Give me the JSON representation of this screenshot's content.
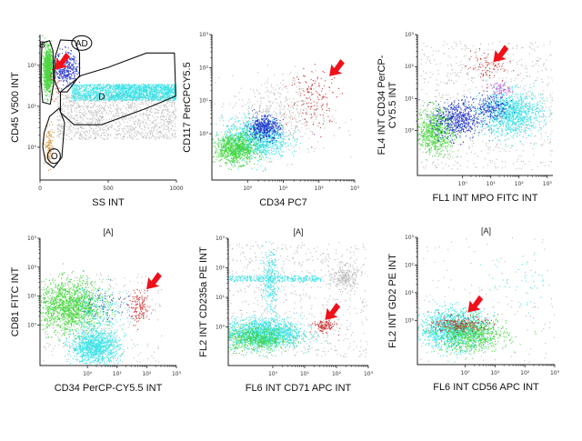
{
  "colors": {
    "green": "#39d12e",
    "blue": "#1a2ac8",
    "cyan": "#2fe0e4",
    "red": "#c82020",
    "grey": "#a8a8a8",
    "orange": "#d48a2c",
    "magenta": "#c050d0",
    "arrow": "#f0101a"
  },
  "chart_data": [
    {
      "id": "p1",
      "type": "scatter",
      "header": "",
      "xlabel": "SS INT",
      "ylabel": "CD45 V500 INT",
      "x_scale": "linear",
      "y_scale": "log",
      "x_ticks": [
        {
          "v": 0,
          "t": "0"
        },
        {
          "v": 500,
          "t": "500"
        },
        {
          "v": 1000,
          "t": "1000"
        }
      ],
      "y_ticks": [
        {
          "v": 0,
          "t": "10⁰"
        },
        {
          "v": 1,
          "t": "10¹"
        },
        {
          "v": 2,
          "t": "10²"
        }
      ],
      "gates": [
        {
          "label": "B",
          "path": [
            [
              15,
              2.55
            ],
            [
              70,
              2.6
            ],
            [
              95,
              2.35
            ],
            [
              100,
              1.55
            ],
            [
              75,
              1.05
            ],
            [
              20,
              1.1
            ],
            [
              8,
              1.6
            ],
            [
              10,
              2.2
            ]
          ]
        },
        {
          "label": "AD",
          "path": [
            [
              110,
              2.2
            ],
            [
              150,
              2.62
            ],
            [
              255,
              2.6
            ],
            [
              290,
              2.3
            ],
            [
              290,
              1.75
            ],
            [
              200,
              1.35
            ],
            [
              140,
              1.35
            ],
            [
              105,
              1.65
            ]
          ]
        },
        {
          "label": "D",
          "path": [
            [
              150,
              1.35
            ],
            [
              300,
              1.75
            ],
            [
              500,
              1.95
            ],
            [
              780,
              2.3
            ],
            [
              985,
              2.3
            ],
            [
              995,
              1.25
            ],
            [
              780,
              0.95
            ],
            [
              450,
              0.55
            ],
            [
              250,
              0.55
            ],
            [
              150,
              0.85
            ]
          ]
        },
        {
          "label": "O",
          "path": [
            [
              30,
              0.35
            ],
            [
              70,
              0.75
            ],
            [
              140,
              0.95
            ],
            [
              180,
              0.6
            ],
            [
              160,
              -0.25
            ],
            [
              100,
              -0.5
            ],
            [
              40,
              -0.35
            ],
            [
              20,
              0.0
            ]
          ]
        }
      ],
      "clusters": [
        {
          "color": "grey",
          "n": 1300,
          "x": [
            120,
            1000
          ],
          "y": [
            0.2,
            1.3
          ],
          "mode": "uniform"
        },
        {
          "color": "cyan",
          "n": 1500,
          "x": [
            230,
            1000
          ],
          "y": [
            1.15,
            1.55
          ],
          "mode": "uniform"
        },
        {
          "color": "cyan",
          "n": 450,
          "x": [
            550,
            1000
          ],
          "y": [
            1.2,
            1.55
          ],
          "mode": "uniform"
        },
        {
          "color": "green",
          "n": 1000,
          "cx": 55,
          "cy": 1.9,
          "sx": 16,
          "sy": 0.26
        },
        {
          "color": "blue",
          "n": 350,
          "cx": 190,
          "cy": 1.95,
          "sx": 40,
          "sy": 0.2
        },
        {
          "color": "orange",
          "n": 120,
          "cx": 65,
          "cy": 0.05,
          "sx": 18,
          "sy": 0.25
        },
        {
          "color": "red",
          "n": 30,
          "cx": 110,
          "cy": 1.55,
          "sx": 20,
          "sy": 0.2
        }
      ],
      "arrows": [
        {
          "x": 110,
          "y": 1.9
        }
      ]
    },
    {
      "id": "p2",
      "type": "scatter",
      "header": "",
      "xlabel": "CD34 PC7",
      "ylabel": "CD117 PerCPCY5.5",
      "x_scale": "log",
      "y_scale": "log",
      "x_ticks": [
        {
          "v": 0,
          "t": "10⁰"
        },
        {
          "v": 1,
          "t": "10¹"
        },
        {
          "v": 2,
          "t": "10²"
        },
        {
          "v": 3,
          "t": "10³"
        }
      ],
      "y_ticks": [
        {
          "v": 0,
          "t": "10⁰"
        },
        {
          "v": 1,
          "t": "10¹"
        },
        {
          "v": 2,
          "t": "10²"
        },
        {
          "v": 3,
          "t": "10³"
        }
      ],
      "gates": [],
      "clusters": [
        {
          "color": "grey",
          "n": 500,
          "cx": 0.9,
          "cy": 0.6,
          "sx": 0.7,
          "sy": 0.6
        },
        {
          "color": "cyan",
          "n": 1100,
          "cx": 0.2,
          "cy": -0.15,
          "sx": 0.45,
          "sy": 0.3
        },
        {
          "color": "green",
          "n": 800,
          "cx": -0.35,
          "cy": -0.45,
          "sx": 0.3,
          "sy": 0.22
        },
        {
          "color": "blue",
          "n": 450,
          "cx": 0.45,
          "cy": 0.2,
          "sx": 0.22,
          "sy": 0.18
        },
        {
          "color": "red",
          "n": 140,
          "cx": 1.9,
          "cy": 1.1,
          "sx": 0.35,
          "sy": 0.45
        }
      ],
      "arrows": [
        {
          "x": 2.3,
          "y": 1.75
        }
      ]
    },
    {
      "id": "p3",
      "type": "scatter",
      "header": "",
      "xlabel": "FL1 INT MPO FITC INT",
      "ylabel": "FL4 INT CD34 PerCP-CY5.5 INT",
      "ylabel_lines": [
        "FL4 INT CD34 PerCP-",
        "CY5.5 INT"
      ],
      "x_scale": "log",
      "y_scale": "log",
      "x_ticks": [
        {
          "v": 0,
          "t": "10⁰"
        },
        {
          "v": 1,
          "t": "10¹"
        },
        {
          "v": 2,
          "t": "10²"
        },
        {
          "v": 3,
          "t": "10³"
        }
      ],
      "y_ticks": [
        {
          "v": 0,
          "t": "10⁰"
        },
        {
          "v": 1,
          "t": "10¹"
        },
        {
          "v": 2,
          "t": "10²"
        },
        {
          "v": 3,
          "t": "10³"
        }
      ],
      "gates": [],
      "clusters": [
        {
          "color": "grey",
          "n": 700,
          "x": [
            -1.5,
            3.2
          ],
          "y": [
            -1.2,
            2.8
          ],
          "mode": "uniform"
        },
        {
          "color": "cyan",
          "n": 1100,
          "cx": 1.7,
          "cy": 0.55,
          "sx": 0.55,
          "sy": 0.35
        },
        {
          "color": "green",
          "n": 700,
          "cx": -1.0,
          "cy": 0.0,
          "sx": 0.35,
          "sy": 0.35
        },
        {
          "color": "blue",
          "n": 550,
          "cx": -0.2,
          "cy": 0.35,
          "sx": 0.4,
          "sy": 0.3
        },
        {
          "color": "blue",
          "n": 200,
          "cx": 1.0,
          "cy": 0.75,
          "sx": 0.3,
          "sy": 0.2
        },
        {
          "color": "magenta",
          "n": 70,
          "cx": 1.3,
          "cy": 1.3,
          "sx": 0.18,
          "sy": 0.12
        },
        {
          "color": "red",
          "n": 90,
          "cx": 0.8,
          "cy": 2.0,
          "sx": 0.35,
          "sy": 0.25
        }
      ],
      "arrows": [
        {
          "x": 1.1,
          "y": 2.15
        }
      ]
    },
    {
      "id": "p4",
      "type": "scatter",
      "header": "[A]",
      "xlabel": "CD34 PerCP-CY5.5 INT",
      "ylabel": "CD81 FITC INT",
      "x_scale": "log",
      "y_scale": "log",
      "x_ticks": [
        {
          "v": 0,
          "t": "10⁰"
        },
        {
          "v": 1,
          "t": "10¹"
        },
        {
          "v": 2,
          "t": "10²"
        },
        {
          "v": 3,
          "t": "10³"
        }
      ],
      "y_ticks": [
        {
          "v": 0,
          "t": "10⁰"
        },
        {
          "v": 1,
          "t": "10¹"
        },
        {
          "v": 2,
          "t": "10²"
        },
        {
          "v": 3,
          "t": "10³"
        }
      ],
      "gates": [],
      "clusters": [
        {
          "color": "grey",
          "n": 250,
          "x": [
            -1.5,
            2.5
          ],
          "y": [
            -1.3,
            1.8
          ],
          "mode": "uniform"
        },
        {
          "color": "green",
          "n": 1400,
          "cx": -0.6,
          "cy": 0.65,
          "sx": 0.55,
          "sy": 0.45
        },
        {
          "color": "cyan",
          "n": 1100,
          "cx": 0.25,
          "cy": -0.75,
          "sx": 0.4,
          "sy": 0.28
        },
        {
          "color": "cyan",
          "n": 250,
          "cx": 0.35,
          "cy": 0.4,
          "sx": 0.5,
          "sy": 0.5
        },
        {
          "color": "blue",
          "n": 60,
          "cx": 0.6,
          "cy": 0.8,
          "sx": 0.4,
          "sy": 0.3
        },
        {
          "color": "red",
          "n": 130,
          "cx": 1.75,
          "cy": 0.6,
          "sx": 0.18,
          "sy": 0.25
        }
      ],
      "arrows": [
        {
          "x": 2.0,
          "y": 1.25
        }
      ]
    },
    {
      "id": "p5",
      "type": "scatter",
      "header": "[A]",
      "xlabel": "FL6 INT CD71 APC INT",
      "ylabel": "FL2 INT CD235a PE INT",
      "x_scale": "log",
      "y_scale": "log",
      "x_ticks": [
        {
          "v": 0,
          "t": "10⁰"
        },
        {
          "v": 1,
          "t": "10¹"
        },
        {
          "v": 2,
          "t": "10²"
        },
        {
          "v": 3,
          "t": "10³"
        }
      ],
      "y_ticks": [
        {
          "v": 0,
          "t": "10⁰"
        },
        {
          "v": 1,
          "t": "10¹"
        },
        {
          "v": 2,
          "t": "10²"
        },
        {
          "v": 3,
          "t": "10³"
        }
      ],
      "gates": [],
      "clusters": [
        {
          "color": "grey",
          "n": 700,
          "x": [
            -1.5,
            3.0
          ],
          "y": [
            -1.0,
            2.9
          ],
          "mode": "uniform"
        },
        {
          "color": "grey",
          "n": 250,
          "cx": 2.25,
          "cy": 1.7,
          "sx": 0.2,
          "sy": 0.2
        },
        {
          "color": "cyan",
          "n": 300,
          "x": [
            -1.4,
            1.5
          ],
          "y": [
            1.55,
            1.75
          ],
          "mode": "uniform"
        },
        {
          "color": "cyan",
          "n": 250,
          "cx": -0.1,
          "cy": 1.6,
          "sx": 0.12,
          "sy": 0.5
        },
        {
          "color": "cyan",
          "n": 1600,
          "cx": -0.3,
          "cy": -0.2,
          "sx": 0.6,
          "sy": 0.25
        },
        {
          "color": "green",
          "n": 500,
          "cx": -0.5,
          "cy": -0.4,
          "sx": 0.5,
          "sy": 0.2
        },
        {
          "color": "red",
          "n": 130,
          "cx": 1.6,
          "cy": 0.05,
          "sx": 0.18,
          "sy": 0.1
        }
      ],
      "arrows": [
        {
          "x": 1.65,
          "y": 0.25
        }
      ]
    },
    {
      "id": "p6",
      "type": "scatter",
      "header": "[A]",
      "xlabel": "FL6 INT CD56 APC INT",
      "ylabel": "FL2 INT GD2 PE INT",
      "x_scale": "log",
      "y_scale": "log",
      "x_ticks": [
        {
          "v": 0,
          "t": "10⁰"
        },
        {
          "v": 1,
          "t": "10¹"
        },
        {
          "v": 2,
          "t": "10²"
        },
        {
          "v": 3,
          "t": "10³"
        }
      ],
      "y_ticks": [
        {
          "v": 0,
          "t": "10⁰"
        },
        {
          "v": 1,
          "t": "10¹"
        },
        {
          "v": 2,
          "t": "10²"
        },
        {
          "v": 3,
          "t": "10³"
        }
      ],
      "gates": [],
      "clusters": [
        {
          "color": "grey",
          "n": 120,
          "x": [
            -1.5,
            3.0
          ],
          "y": [
            -1.5,
            3.0
          ],
          "mode": "uniform"
        },
        {
          "color": "cyan",
          "n": 1400,
          "cx": -0.4,
          "cy": -0.3,
          "sx": 0.55,
          "sy": 0.35
        },
        {
          "color": "green",
          "n": 700,
          "cx": 0.2,
          "cy": -0.5,
          "sx": 0.6,
          "sy": 0.3
        },
        {
          "color": "cyan",
          "n": 60,
          "cx": 1.8,
          "cy": 1.5,
          "sx": 0.8,
          "sy": 0.6
        },
        {
          "color": "red",
          "n": 220,
          "cx": -0.2,
          "cy": -0.15,
          "sx": 0.45,
          "sy": 0.15
        }
      ],
      "arrows": [
        {
          "x": 0.1,
          "y": 0.3
        }
      ]
    }
  ]
}
